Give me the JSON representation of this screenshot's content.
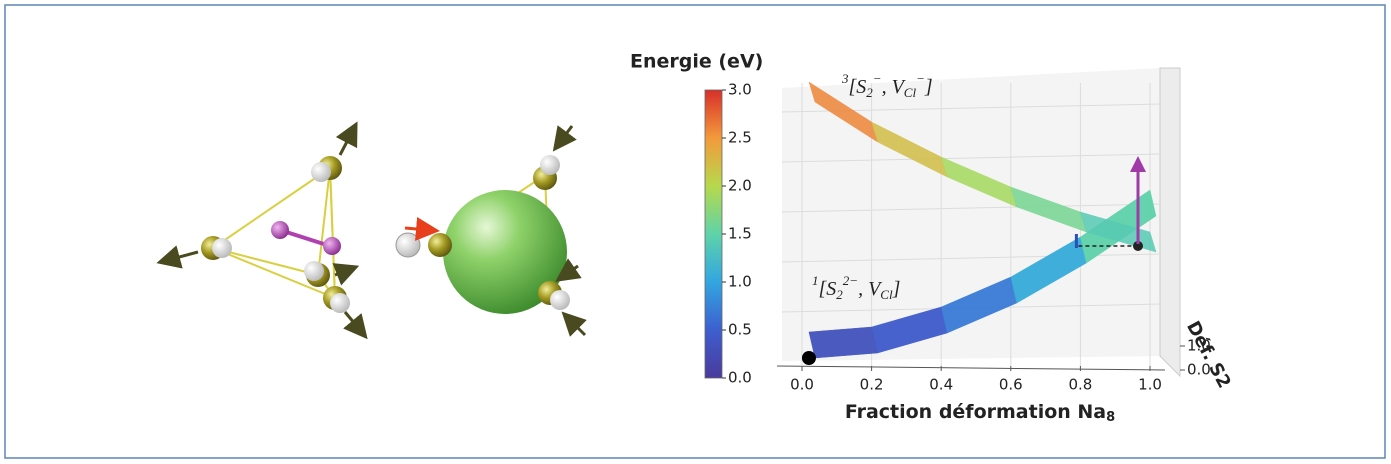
{
  "chart_data": {
    "type": "ribbon3d",
    "colorbar_title": "Energie (eV)",
    "clim": [
      0,
      3
    ],
    "cticks": [
      {
        "value": 0,
        "label": "0.0"
      },
      0.5,
      {
        "value": 1,
        "label": "1.0"
      },
      1.5,
      {
        "value": 2,
        "label": "2.0"
      },
      2.5,
      {
        "value": 3,
        "label": "3.0"
      }
    ],
    "colormap": [
      "#4a3a9c",
      "#3d5fcf",
      "#32a6e0",
      "#5fd3a8",
      "#b6d94c",
      "#f39a3b",
      "#d7302a"
    ],
    "x_label": "Fraction déformation Na",
    "x_label_sub": "8",
    "xlim": [
      0,
      1
    ],
    "xticks": [
      {
        "value": 0,
        "label": "0.0"
      },
      0.2,
      0.4,
      0.6,
      0.8,
      {
        "value": 1,
        "label": "1.0"
      }
    ],
    "zlim": [
      0,
      3
    ],
    "depth_label": "Déf. S2",
    "depth_ticks": [
      {
        "value": 1,
        "label": "1.0"
      },
      {
        "value": 0,
        "label": "0.0"
      }
    ],
    "x": [
      0.02,
      0.2,
      0.4,
      0.6,
      0.8,
      1.0
    ],
    "series": [
      {
        "values": [
          0.3,
          0.35,
          0.55,
          0.85,
          1.25,
          1.72
        ]
      },
      {
        "values": [
          2.8,
          2.4,
          2.05,
          1.75,
          1.5,
          1.3
        ]
      }
    ],
    "annotations": [
      {
        "parts": [
          {
            "t": "3",
            "pos": "sup"
          },
          {
            "t": "[S"
          },
          {
            "t": "2",
            "pos": "sub"
          },
          {
            "t": "−",
            "pos": "sup"
          },
          {
            "t": ", V"
          },
          {
            "t": "Cl",
            "pos": "sub"
          },
          {
            "t": "−",
            "pos": "sup"
          },
          {
            "t": "]"
          }
        ]
      },
      {
        "parts": [
          {
            "t": "1",
            "pos": "sup"
          },
          {
            "t": "[S"
          },
          {
            "t": "2",
            "pos": "sub"
          },
          {
            "t": "2−",
            "pos": "sup"
          },
          {
            "t": ", V"
          },
          {
            "t": "Cl",
            "pos": "sub"
          },
          {
            "t": "]"
          }
        ]
      }
    ],
    "grid": true
  }
}
